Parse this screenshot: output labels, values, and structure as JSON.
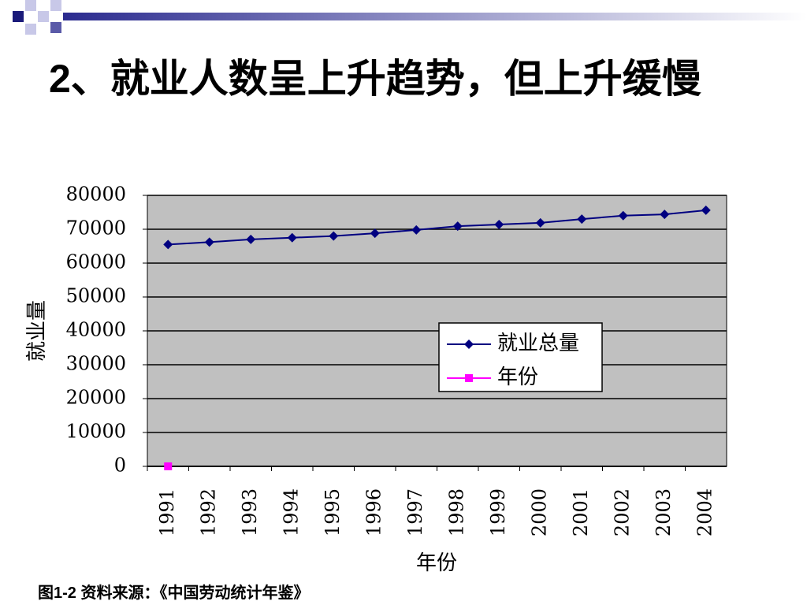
{
  "chart_data": {
    "type": "line",
    "title": "2、就业人数呈上升趋势，但上升缓慢",
    "caption": "图1-2  资料来源：《中国劳动统计年鉴》",
    "xlabel": "年份",
    "ylabel": "就业量",
    "categories": [
      "1991",
      "1992",
      "1993",
      "1994",
      "1995",
      "1996",
      "1997",
      "1998",
      "1999",
      "2000",
      "2001",
      "2002",
      "2003",
      "2004"
    ],
    "series": [
      {
        "name": "就业总量",
        "color": "#000080",
        "marker": "diamond",
        "values": [
          65500,
          66200,
          67000,
          67500,
          68000,
          68800,
          69800,
          70900,
          71400,
          71900,
          73000,
          74000,
          74400,
          75600
        ]
      },
      {
        "name": "年份",
        "color": "#ff00ff",
        "marker": "square",
        "values": [
          0,
          null,
          null,
          null,
          null,
          null,
          null,
          null,
          null,
          null,
          null,
          null,
          null,
          null
        ]
      }
    ],
    "ylim": [
      0,
      80000
    ],
    "yticks": [
      0,
      10000,
      20000,
      30000,
      40000,
      50000,
      60000,
      70000,
      80000
    ],
    "grid": true,
    "legend": "right"
  }
}
